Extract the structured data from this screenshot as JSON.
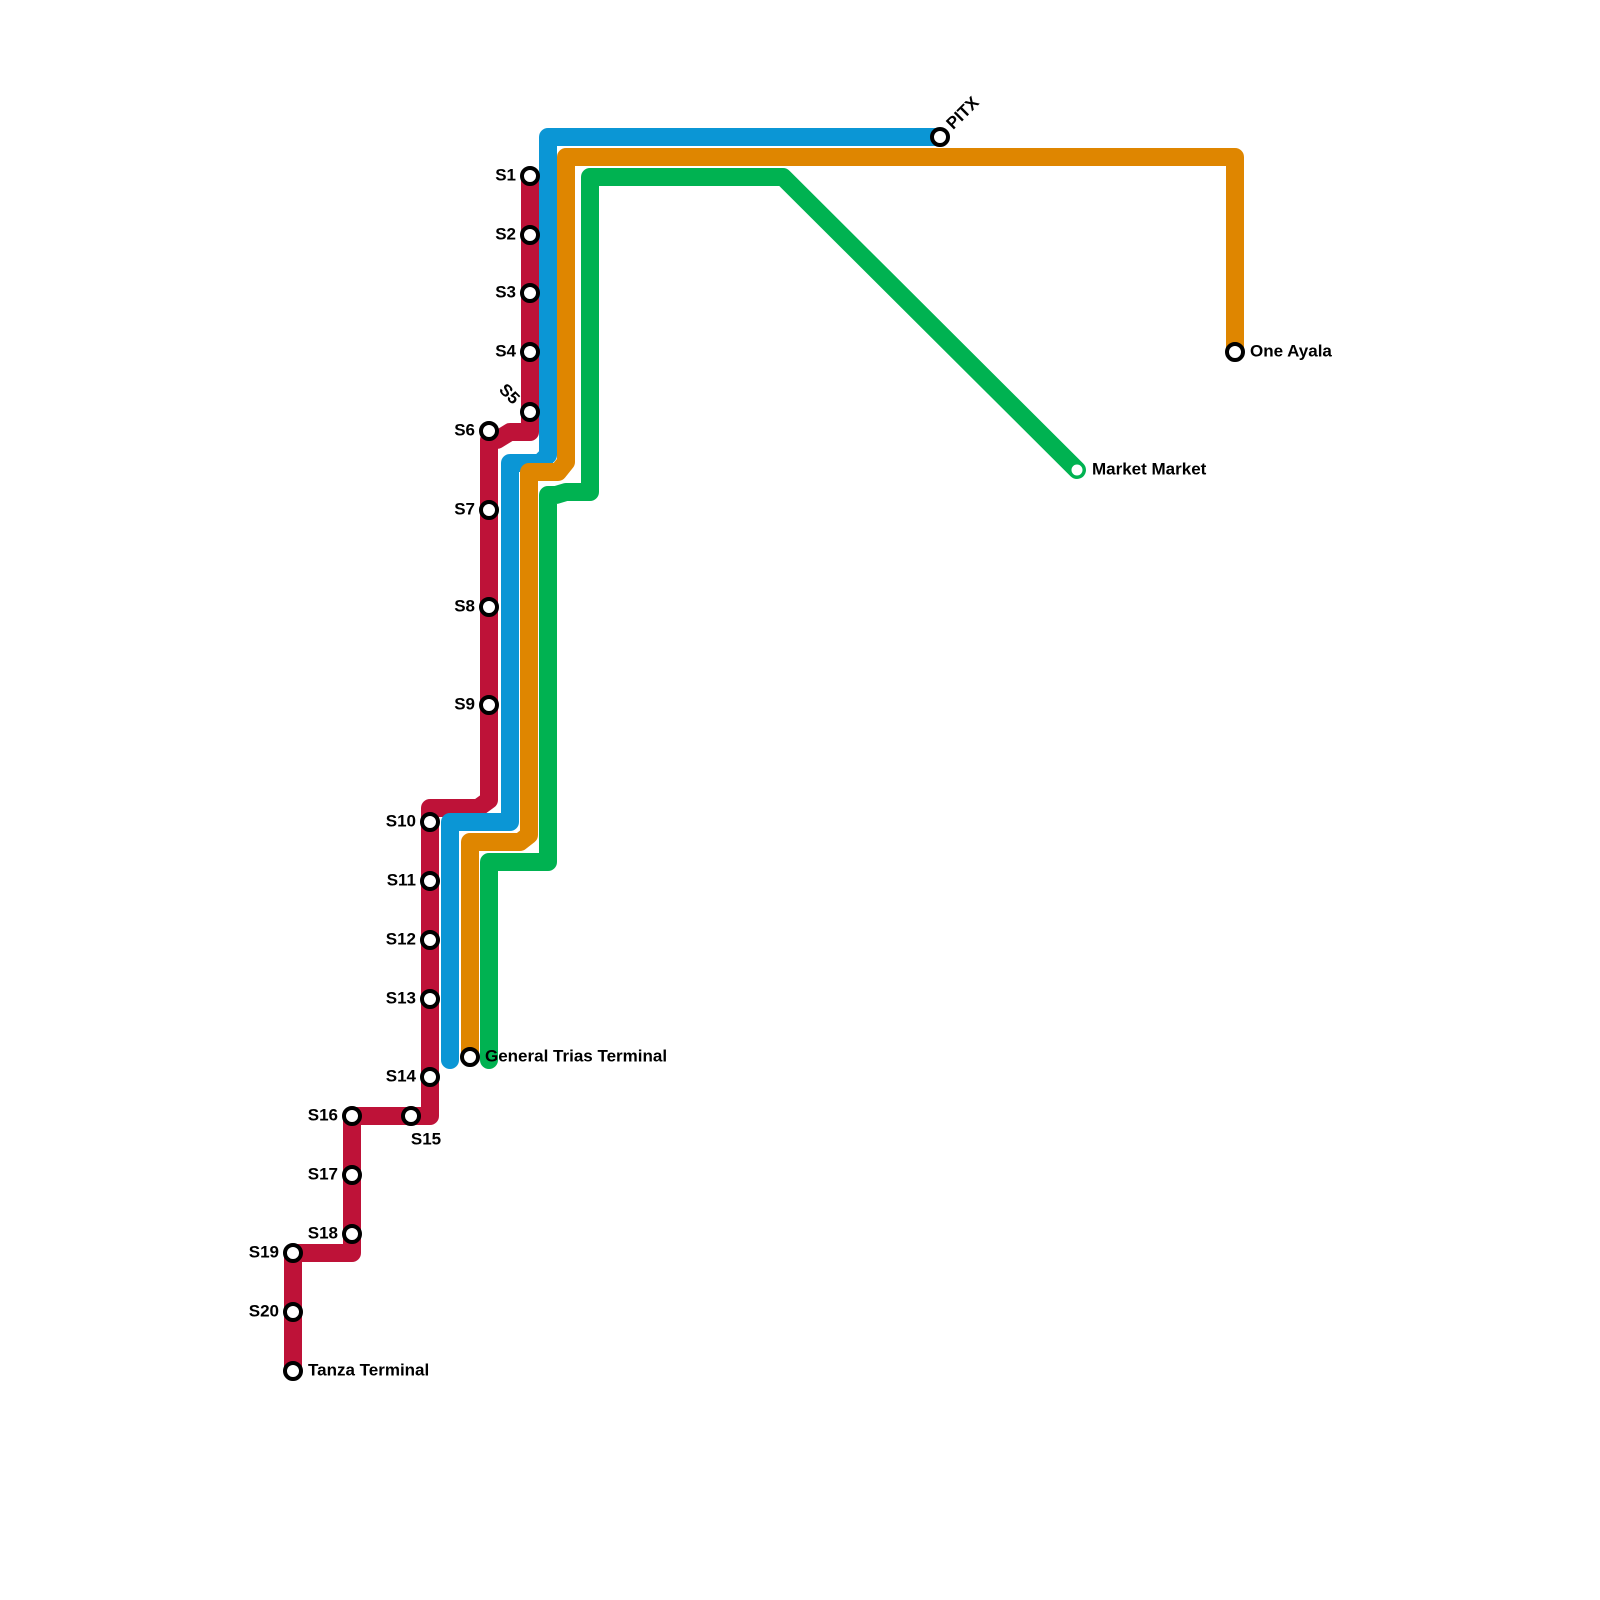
{
  "stations": [
    {
      "label": "S1"
    },
    {
      "label": "S2"
    },
    {
      "label": "S3"
    },
    {
      "label": "S4"
    },
    {
      "label": "S5"
    },
    {
      "label": "S6"
    },
    {
      "label": "S7"
    },
    {
      "label": "S8"
    },
    {
      "label": "S9"
    },
    {
      "label": "S10"
    },
    {
      "label": "S11"
    },
    {
      "label": "S12"
    },
    {
      "label": "S13"
    },
    {
      "label": "S14"
    },
    {
      "label": "S15"
    },
    {
      "label": "S16"
    },
    {
      "label": "S17"
    },
    {
      "label": "S18"
    },
    {
      "label": "S19"
    },
    {
      "label": "S20"
    },
    {
      "label": "Tanza Terminal"
    },
    {
      "label": "General Trias Terminal"
    },
    {
      "label": "PITX"
    },
    {
      "label": "One Ayala"
    },
    {
      "label": "Market Market"
    }
  ]
}
